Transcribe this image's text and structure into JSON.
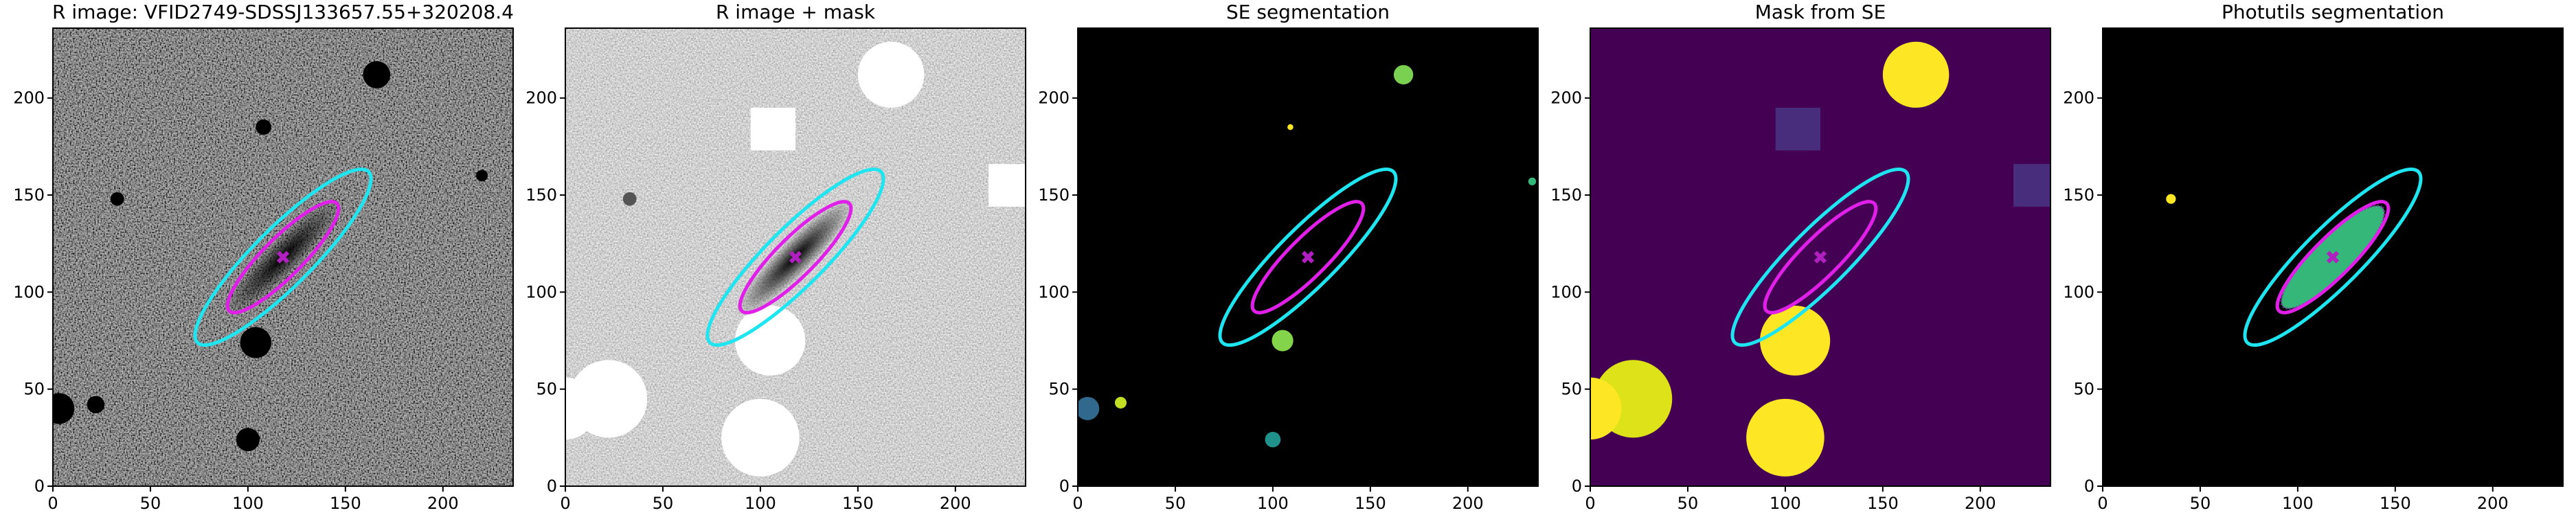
{
  "chart_data": [
    {
      "type": "image",
      "title": "R image: VFID2749-SDSSJ133657.55+320208.4",
      "cmap": "gray",
      "xlim": [
        0,
        236
      ],
      "ylim": [
        0,
        236
      ],
      "xticks": [
        0,
        50,
        100,
        150,
        200
      ],
      "yticks": [
        0,
        50,
        100,
        150,
        200
      ]
    },
    {
      "type": "image",
      "title": "R image + mask",
      "cmap": "gray_r",
      "xlim": [
        0,
        236
      ],
      "ylim": [
        0,
        236
      ],
      "xticks": [
        0,
        50,
        100,
        150,
        200
      ],
      "yticks": [
        0,
        50,
        100,
        150,
        200
      ]
    },
    {
      "type": "image",
      "title": "SE segmentation",
      "cmap": "segmentation",
      "xlim": [
        0,
        236
      ],
      "ylim": [
        0,
        236
      ],
      "xticks": [
        0,
        50,
        100,
        150,
        200
      ],
      "yticks": [
        0,
        50,
        100,
        150,
        200
      ]
    },
    {
      "type": "image",
      "title": "Mask from SE",
      "cmap": "viridis",
      "xlim": [
        0,
        236
      ],
      "ylim": [
        0,
        236
      ],
      "xticks": [
        0,
        50,
        100,
        150,
        200
      ],
      "yticks": [
        0,
        50,
        100,
        150,
        200
      ]
    },
    {
      "type": "image",
      "title": "Photutils segmentation",
      "cmap": "photutils",
      "xlim": [
        0,
        236
      ],
      "ylim": [
        0,
        236
      ],
      "xticks": [
        0,
        50,
        100,
        150,
        200
      ],
      "yticks": [
        0,
        50,
        100,
        150,
        200
      ]
    }
  ]
}
